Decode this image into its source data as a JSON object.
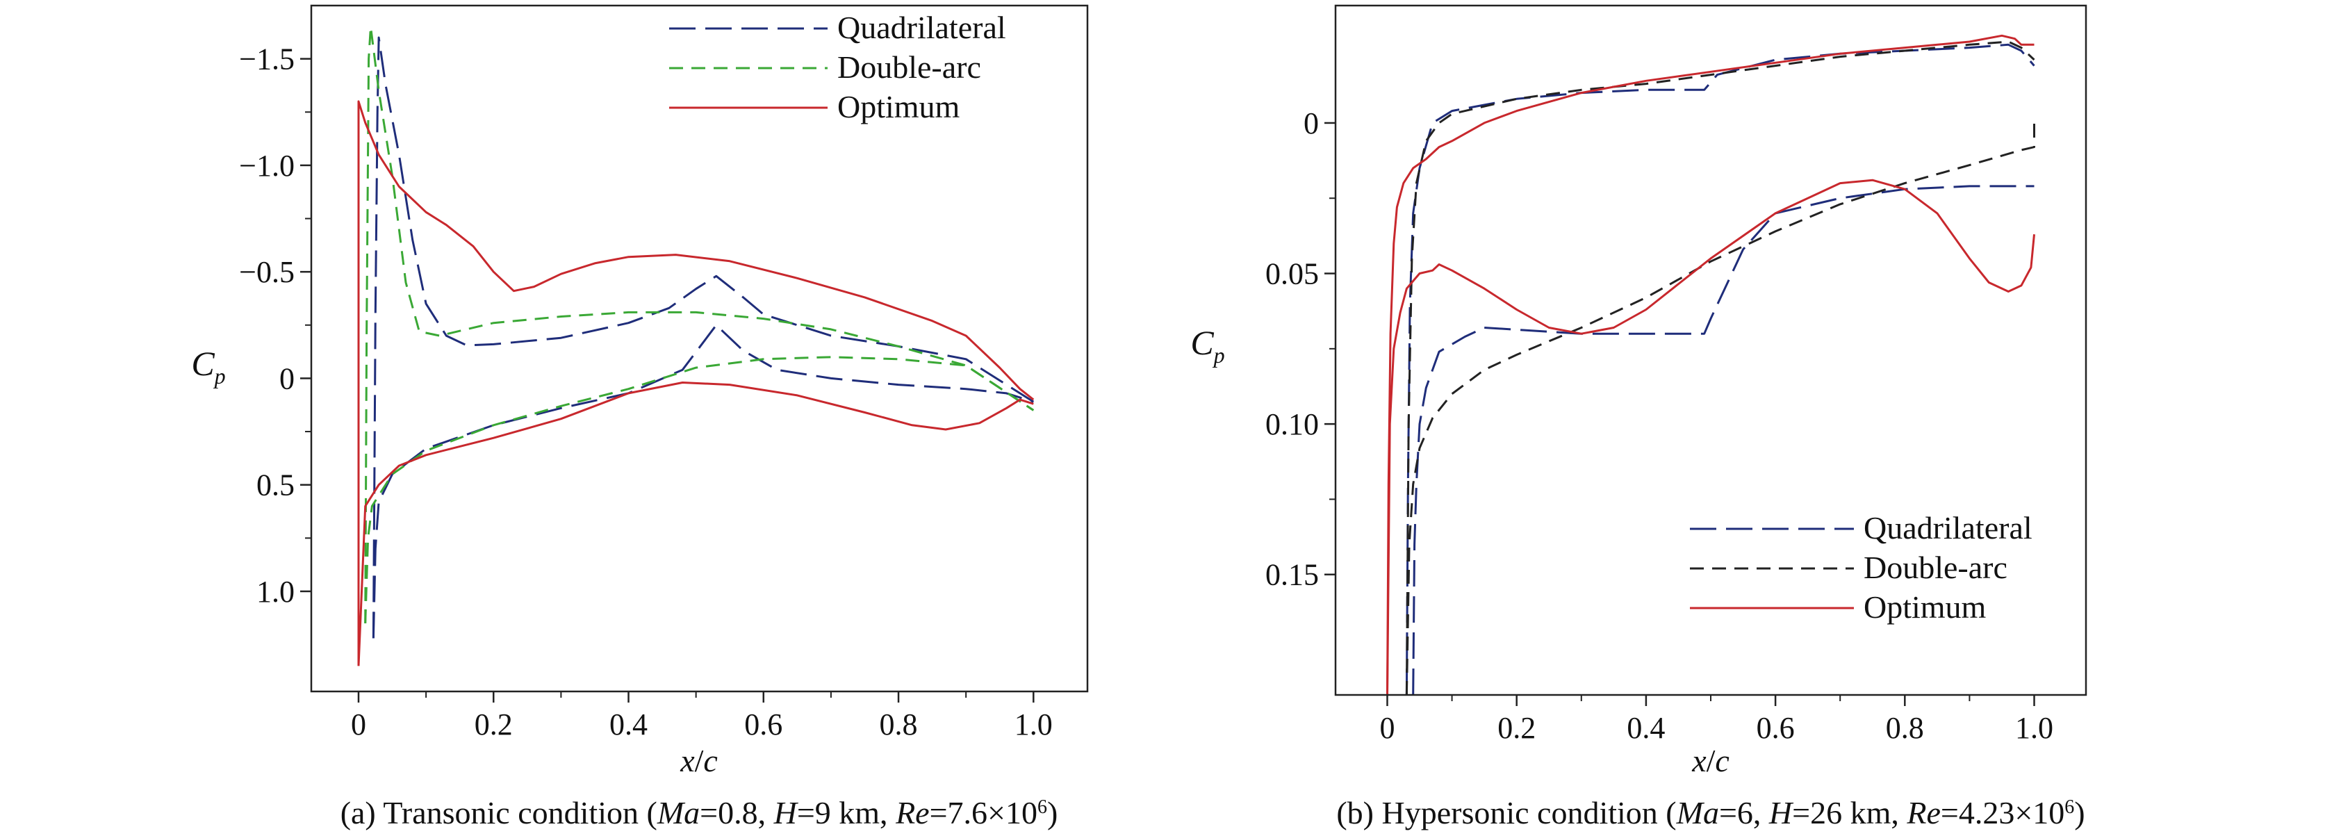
{
  "chart_data": [
    {
      "type": "line",
      "caption_prefix": "(a) Transonic condition (",
      "caption_parts": [
        {
          "t": "Ma",
          "i": true
        },
        {
          "t": "=0.8, "
        },
        {
          "t": "H",
          "i": true
        },
        {
          "t": "=9 km, "
        },
        {
          "t": "Re",
          "i": true
        },
        {
          "t": "=7.6×10"
        },
        {
          "t": "6",
          "sup": true
        },
        {
          "t": ")"
        }
      ],
      "xlabel_parts": [
        {
          "t": "x",
          "i": true
        },
        {
          "t": "/"
        },
        {
          "t": "c",
          "i": true
        }
      ],
      "ylabel": {
        "main": "C",
        "sub": "p"
      },
      "xlim": [
        -0.07,
        1.08
      ],
      "ylim": [
        1.47,
        -1.75
      ],
      "y_inverted": true,
      "xticks": [
        0,
        0.2,
        0.4,
        0.6,
        0.8,
        1.0
      ],
      "xtick_labels": [
        "0",
        "0.2",
        "0.4",
        "0.6",
        "0.8",
        "1.0"
      ],
      "yticks": [
        -1.5,
        -1.0,
        -0.5,
        0,
        0.5,
        1.0
      ],
      "ytick_labels": [
        "−1.5",
        "−1.0",
        "−0.5",
        "0",
        "0.5",
        "1.0"
      ],
      "legend_position": "top-right",
      "series": [
        {
          "name": "Quadrilateral",
          "color": "#1f2d7a",
          "dash": "long",
          "upper": [
            [
              0.022,
              1.22
            ],
            [
              0.025,
              -0.3
            ],
            [
              0.028,
              -1.25
            ],
            [
              0.03,
              -1.6
            ],
            [
              0.04,
              -1.38
            ],
            [
              0.06,
              -1.05
            ],
            [
              0.08,
              -0.65
            ],
            [
              0.1,
              -0.35
            ],
            [
              0.13,
              -0.2
            ],
            [
              0.16,
              -0.155
            ],
            [
              0.2,
              -0.16
            ],
            [
              0.3,
              -0.19
            ],
            [
              0.4,
              -0.26
            ],
            [
              0.46,
              -0.33
            ],
            [
              0.5,
              -0.42
            ],
            [
              0.53,
              -0.48
            ],
            [
              0.57,
              -0.38
            ],
            [
              0.6,
              -0.3
            ],
            [
              0.7,
              -0.2
            ],
            [
              0.8,
              -0.15
            ],
            [
              0.9,
              -0.09
            ],
            [
              1.0,
              0.11
            ]
          ],
          "lower": [
            [
              0.022,
              1.22
            ],
            [
              0.025,
              0.8
            ],
            [
              0.03,
              0.58
            ],
            [
              0.05,
              0.45
            ],
            [
              0.1,
              0.33
            ],
            [
              0.2,
              0.22
            ],
            [
              0.3,
              0.14
            ],
            [
              0.4,
              0.07
            ],
            [
              0.48,
              -0.04
            ],
            [
              0.53,
              -0.25
            ],
            [
              0.57,
              -0.13
            ],
            [
              0.62,
              -0.04
            ],
            [
              0.7,
              0.0
            ],
            [
              0.8,
              0.03
            ],
            [
              0.9,
              0.05
            ],
            [
              0.96,
              0.07
            ],
            [
              1.0,
              0.11
            ]
          ]
        },
        {
          "name": "Double-arc",
          "color": "#3aa835",
          "dash": "short",
          "upper": [
            [
              0.01,
              1.15
            ],
            [
              0.012,
              -0.2
            ],
            [
              0.015,
              -1.5
            ],
            [
              0.018,
              -1.65
            ],
            [
              0.03,
              -1.35
            ],
            [
              0.05,
              -0.95
            ],
            [
              0.07,
              -0.45
            ],
            [
              0.09,
              -0.22
            ],
            [
              0.12,
              -0.2
            ],
            [
              0.2,
              -0.26
            ],
            [
              0.3,
              -0.29
            ],
            [
              0.4,
              -0.31
            ],
            [
              0.5,
              -0.31
            ],
            [
              0.6,
              -0.28
            ],
            [
              0.7,
              -0.23
            ],
            [
              0.8,
              -0.15
            ],
            [
              0.9,
              -0.06
            ],
            [
              1.0,
              0.15
            ]
          ],
          "lower": [
            [
              0.01,
              1.15
            ],
            [
              0.014,
              0.75
            ],
            [
              0.02,
              0.6
            ],
            [
              0.05,
              0.45
            ],
            [
              0.1,
              0.34
            ],
            [
              0.2,
              0.22
            ],
            [
              0.3,
              0.13
            ],
            [
              0.4,
              0.05
            ],
            [
              0.5,
              -0.05
            ],
            [
              0.6,
              -0.09
            ],
            [
              0.7,
              -0.1
            ],
            [
              0.8,
              -0.09
            ],
            [
              0.9,
              -0.06
            ],
            [
              1.0,
              0.15
            ]
          ]
        },
        {
          "name": "Optimum",
          "color": "#c8282d",
          "dash": "solid",
          "upper": [
            [
              0.0,
              1.35
            ],
            [
              0.0,
              -1.3
            ],
            [
              0.01,
              -1.2
            ],
            [
              0.03,
              -1.05
            ],
            [
              0.06,
              -0.9
            ],
            [
              0.1,
              -0.78
            ],
            [
              0.13,
              -0.72
            ],
            [
              0.17,
              -0.62
            ],
            [
              0.2,
              -0.5
            ],
            [
              0.23,
              -0.41
            ],
            [
              0.26,
              -0.43
            ],
            [
              0.3,
              -0.49
            ],
            [
              0.35,
              -0.54
            ],
            [
              0.4,
              -0.57
            ],
            [
              0.47,
              -0.58
            ],
            [
              0.55,
              -0.55
            ],
            [
              0.65,
              -0.47
            ],
            [
              0.75,
              -0.38
            ],
            [
              0.85,
              -0.27
            ],
            [
              0.9,
              -0.2
            ],
            [
              0.95,
              -0.05
            ],
            [
              0.98,
              0.05
            ],
            [
              1.0,
              0.1
            ]
          ],
          "lower": [
            [
              0.0,
              1.35
            ],
            [
              0.01,
              0.6
            ],
            [
              0.03,
              0.5
            ],
            [
              0.06,
              0.41
            ],
            [
              0.1,
              0.36
            ],
            [
              0.2,
              0.28
            ],
            [
              0.3,
              0.19
            ],
            [
              0.4,
              0.07
            ],
            [
              0.48,
              0.02
            ],
            [
              0.55,
              0.03
            ],
            [
              0.65,
              0.08
            ],
            [
              0.75,
              0.16
            ],
            [
              0.82,
              0.22
            ],
            [
              0.87,
              0.24
            ],
            [
              0.92,
              0.21
            ],
            [
              0.96,
              0.14
            ],
            [
              0.98,
              0.1
            ],
            [
              1.0,
              0.12
            ]
          ]
        }
      ]
    },
    {
      "type": "line",
      "caption_prefix": "(b) Hypersonic condition (",
      "caption_parts": [
        {
          "t": "Ma",
          "i": true
        },
        {
          "t": "=6, "
        },
        {
          "t": "H",
          "i": true
        },
        {
          "t": "=26 km, "
        },
        {
          "t": "Re",
          "i": true
        },
        {
          "t": "=4.23×10"
        },
        {
          "t": "6",
          "sup": true
        },
        {
          "t": ")"
        }
      ],
      "xlabel_parts": [
        {
          "t": "x",
          "i": true
        },
        {
          "t": "/"
        },
        {
          "t": "c",
          "i": true
        }
      ],
      "ylabel": {
        "main": "C",
        "sub": "p"
      },
      "xlim": [
        -0.08,
        1.08
      ],
      "ylim": [
        0.19,
        -0.039
      ],
      "y_inverted": true,
      "xticks": [
        0,
        0.2,
        0.4,
        0.6,
        0.8,
        1.0
      ],
      "xtick_labels": [
        "0",
        "0.2",
        "0.4",
        "0.6",
        "0.8",
        "1.0"
      ],
      "yticks": [
        0,
        0.05,
        0.1,
        0.15
      ],
      "ytick_labels": [
        "0",
        "0.05",
        "0.10",
        "0.15"
      ],
      "legend_position": "bottom-right",
      "series": [
        {
          "name": "Quadrilateral",
          "color": "#1f2d7a",
          "dash": "long",
          "upper": [
            [
              0.03,
              0.19
            ],
            [
              0.032,
              0.12
            ],
            [
              0.035,
              0.06
            ],
            [
              0.04,
              0.03
            ],
            [
              0.05,
              0.015
            ],
            [
              0.07,
              0.0
            ],
            [
              0.1,
              -0.004
            ],
            [
              0.2,
              -0.008
            ],
            [
              0.3,
              -0.01
            ],
            [
              0.4,
              -0.011
            ],
            [
              0.49,
              -0.011
            ],
            [
              0.51,
              -0.016
            ],
            [
              0.6,
              -0.021
            ],
            [
              0.7,
              -0.023
            ],
            [
              0.8,
              -0.024
            ],
            [
              0.9,
              -0.025
            ],
            [
              0.96,
              -0.026
            ],
            [
              0.98,
              -0.024
            ],
            [
              1.0,
              -0.019
            ]
          ],
          "lower": [
            [
              0.04,
              0.19
            ],
            [
              0.042,
              0.14
            ],
            [
              0.045,
              0.12
            ],
            [
              0.05,
              0.1
            ],
            [
              0.06,
              0.088
            ],
            [
              0.08,
              0.076
            ],
            [
              0.12,
              0.071
            ],
            [
              0.15,
              0.068
            ],
            [
              0.3,
              0.07
            ],
            [
              0.49,
              0.07
            ],
            [
              0.5,
              0.065
            ],
            [
              0.55,
              0.042
            ],
            [
              0.6,
              0.03
            ],
            [
              0.7,
              0.025
            ],
            [
              0.8,
              0.022
            ],
            [
              0.9,
              0.021
            ],
            [
              1.0,
              0.021
            ]
          ]
        },
        {
          "name": "Double-arc",
          "color": "#222222",
          "dash": "short",
          "upper": [
            [
              0.03,
              0.19
            ],
            [
              0.033,
              0.1
            ],
            [
              0.038,
              0.045
            ],
            [
              0.045,
              0.02
            ],
            [
              0.06,
              0.006
            ],
            [
              0.08,
              0.0
            ],
            [
              0.1,
              -0.003
            ],
            [
              0.2,
              -0.008
            ],
            [
              0.3,
              -0.011
            ],
            [
              0.4,
              -0.013
            ],
            [
              0.5,
              -0.016
            ],
            [
              0.6,
              -0.019
            ],
            [
              0.7,
              -0.022
            ],
            [
              0.8,
              -0.024
            ],
            [
              0.9,
              -0.026
            ],
            [
              0.96,
              -0.027
            ],
            [
              0.98,
              -0.025
            ],
            [
              1.0,
              -0.021
            ]
          ],
          "lower": [
            [
              0.03,
              0.19
            ],
            [
              0.034,
              0.14
            ],
            [
              0.04,
              0.12
            ],
            [
              0.05,
              0.108
            ],
            [
              0.07,
              0.098
            ],
            [
              0.1,
              0.09
            ],
            [
              0.15,
              0.082
            ],
            [
              0.2,
              0.077
            ],
            [
              0.3,
              0.068
            ],
            [
              0.4,
              0.058
            ],
            [
              0.5,
              0.046
            ],
            [
              0.6,
              0.036
            ],
            [
              0.7,
              0.027
            ],
            [
              0.8,
              0.02
            ],
            [
              0.9,
              0.014
            ],
            [
              0.98,
              0.009
            ],
            [
              1.0,
              0.008
            ],
            [
              1.0,
              0.0
            ]
          ]
        },
        {
          "name": "Optimum",
          "color": "#c8282d",
          "dash": "solid",
          "upper": [
            [
              0.0,
              0.19
            ],
            [
              0.002,
              0.12
            ],
            [
              0.005,
              0.07
            ],
            [
              0.01,
              0.04
            ],
            [
              0.015,
              0.028
            ],
            [
              0.025,
              0.02
            ],
            [
              0.04,
              0.015
            ],
            [
              0.06,
              0.012
            ],
            [
              0.08,
              0.008
            ],
            [
              0.1,
              0.006
            ],
            [
              0.15,
              0.0
            ],
            [
              0.2,
              -0.004
            ],
            [
              0.3,
              -0.01
            ],
            [
              0.4,
              -0.014
            ],
            [
              0.5,
              -0.017
            ],
            [
              0.6,
              -0.02
            ],
            [
              0.7,
              -0.023
            ],
            [
              0.8,
              -0.025
            ],
            [
              0.9,
              -0.027
            ],
            [
              0.95,
              -0.029
            ],
            [
              0.97,
              -0.028
            ],
            [
              0.98,
              -0.026
            ],
            [
              1.0,
              -0.026
            ]
          ],
          "lower": [
            [
              0.0,
              0.19
            ],
            [
              0.004,
              0.1
            ],
            [
              0.01,
              0.075
            ],
            [
              0.02,
              0.063
            ],
            [
              0.03,
              0.055
            ],
            [
              0.05,
              0.05
            ],
            [
              0.07,
              0.049
            ],
            [
              0.08,
              0.047
            ],
            [
              0.1,
              0.049
            ],
            [
              0.15,
              0.055
            ],
            [
              0.2,
              0.062
            ],
            [
              0.25,
              0.068
            ],
            [
              0.3,
              0.07
            ],
            [
              0.35,
              0.068
            ],
            [
              0.4,
              0.062
            ],
            [
              0.5,
              0.045
            ],
            [
              0.6,
              0.03
            ],
            [
              0.7,
              0.02
            ],
            [
              0.75,
              0.019
            ],
            [
              0.8,
              0.022
            ],
            [
              0.85,
              0.03
            ],
            [
              0.9,
              0.045
            ],
            [
              0.93,
              0.053
            ],
            [
              0.96,
              0.056
            ],
            [
              0.98,
              0.054
            ],
            [
              0.995,
              0.048
            ],
            [
              1.0,
              0.037
            ]
          ]
        }
      ]
    }
  ]
}
